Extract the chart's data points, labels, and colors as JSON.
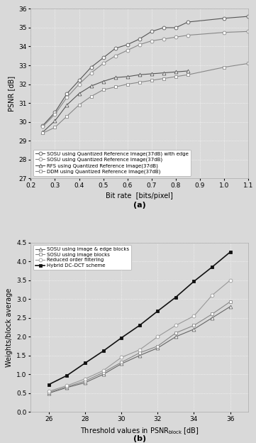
{
  "fig_width": 3.61,
  "fig_height": 6.24,
  "background_color": "#d9d9d9",
  "plot_a": {
    "xlabel": "Bit rate  [bits/pixel]",
    "ylabel": "PSNR [dB]",
    "xlim": [
      0.2,
      1.1
    ],
    "ylim": [
      27,
      36
    ],
    "xticks": [
      0.2,
      0.3,
      0.4,
      0.5,
      0.6,
      0.7,
      0.8,
      0.9,
      1.0,
      1.1
    ],
    "yticks": [
      27,
      28,
      29,
      30,
      31,
      32,
      33,
      34,
      35,
      36
    ],
    "label_a": "(a)",
    "series": [
      {
        "label": "SOSU using Quantized Reference Image(37dB) with edge",
        "x": [
          0.25,
          0.3,
          0.35,
          0.4,
          0.45,
          0.5,
          0.55,
          0.6,
          0.65,
          0.7,
          0.75,
          0.8,
          0.85,
          1.0,
          1.1
        ],
        "y": [
          29.8,
          30.5,
          31.5,
          32.2,
          32.9,
          33.4,
          33.9,
          34.1,
          34.4,
          34.8,
          35.0,
          35.0,
          35.3,
          35.5,
          35.6
        ],
        "marker": "o",
        "color": "#555555",
        "linestyle": "-",
        "linewidth": 0.8,
        "markersize": 3.5,
        "markerfacecolor": "white"
      },
      {
        "label": "SOSU using Quantized Reference Image(37dB)",
        "x": [
          0.25,
          0.3,
          0.35,
          0.4,
          0.45,
          0.5,
          0.55,
          0.6,
          0.65,
          0.7,
          0.75,
          0.8,
          0.85,
          1.0,
          1.1
        ],
        "y": [
          29.75,
          30.4,
          31.3,
          32.0,
          32.6,
          33.1,
          33.5,
          33.8,
          34.1,
          34.3,
          34.4,
          34.5,
          34.6,
          34.75,
          34.8
        ],
        "marker": "o",
        "color": "#888888",
        "linestyle": "-",
        "linewidth": 0.8,
        "markersize": 3.5,
        "markerfacecolor": "white"
      },
      {
        "label": "RFS using Quantized Reference Image(37dB)",
        "x": [
          0.25,
          0.3,
          0.35,
          0.4,
          0.45,
          0.5,
          0.55,
          0.6,
          0.65,
          0.7,
          0.75,
          0.8,
          0.85
        ],
        "y": [
          29.45,
          30.05,
          30.9,
          31.5,
          31.9,
          32.15,
          32.35,
          32.4,
          32.5,
          32.55,
          32.6,
          32.65,
          32.7
        ],
        "marker": "^",
        "color": "#555555",
        "linestyle": "-",
        "linewidth": 0.8,
        "markersize": 3.5,
        "markerfacecolor": "white"
      },
      {
        "label": "DDM using Quantized Reference Image(37dB)",
        "x": [
          0.25,
          0.3,
          0.35,
          0.4,
          0.45,
          0.5,
          0.55,
          0.6,
          0.65,
          0.7,
          0.75,
          0.8,
          0.85,
          1.0,
          1.1
        ],
        "y": [
          29.4,
          29.7,
          30.3,
          30.9,
          31.35,
          31.7,
          31.85,
          32.0,
          32.1,
          32.2,
          32.3,
          32.4,
          32.5,
          32.9,
          33.1
        ],
        "marker": "s",
        "color": "#888888",
        "linestyle": "-",
        "linewidth": 0.8,
        "markersize": 3.0,
        "markerfacecolor": "white"
      }
    ]
  },
  "plot_b": {
    "xlabel": "Threshold values in PSNR",
    "xlabel_sub": "block",
    "xlabel_unit": " [dB]",
    "ylabel": "Weights/block average",
    "xlim": [
      25,
      37
    ],
    "ylim": [
      0,
      4.5
    ],
    "xticks": [
      26,
      28,
      30,
      32,
      34,
      36
    ],
    "yticks": [
      0,
      0.5,
      1.0,
      1.5,
      2.0,
      2.5,
      3.0,
      3.5,
      4.0,
      4.5
    ],
    "label_b": "(b)",
    "series": [
      {
        "label": "SOSU using image & edge blocks",
        "x": [
          26,
          27,
          28,
          29,
          30,
          31,
          32,
          33,
          34,
          35,
          36
        ],
        "y": [
          0.5,
          0.65,
          0.78,
          1.0,
          1.28,
          1.5,
          1.7,
          2.0,
          2.2,
          2.5,
          2.8
        ],
        "marker": "^",
        "color": "#666666",
        "linestyle": "-",
        "linewidth": 0.8,
        "markersize": 3.5,
        "markerfacecolor": "white"
      },
      {
        "label": "SOSU using image blocks",
        "x": [
          26,
          27,
          28,
          29,
          30,
          31,
          32,
          33,
          34,
          35,
          36
        ],
        "y": [
          0.52,
          0.67,
          0.82,
          1.05,
          1.32,
          1.57,
          1.75,
          2.1,
          2.3,
          2.6,
          2.93
        ],
        "marker": "s",
        "color": "#888888",
        "linestyle": "-",
        "linewidth": 0.8,
        "markersize": 3.0,
        "markerfacecolor": "white"
      },
      {
        "label": "Reduced order filtering",
        "x": [
          26,
          27,
          28,
          29,
          30,
          31,
          32,
          33,
          34,
          35,
          36
        ],
        "y": [
          0.55,
          0.7,
          0.88,
          1.1,
          1.45,
          1.65,
          2.0,
          2.3,
          2.55,
          3.1,
          3.5
        ],
        "marker": "o",
        "color": "#999999",
        "linestyle": "-",
        "linewidth": 0.8,
        "markersize": 3.5,
        "markerfacecolor": "white"
      },
      {
        "label": "Hybrid DC–DCT scheme",
        "x": [
          26,
          27,
          28,
          29,
          30,
          31,
          32,
          33,
          34,
          35,
          36
        ],
        "y": [
          0.73,
          0.97,
          1.3,
          1.62,
          1.97,
          2.3,
          2.68,
          3.05,
          3.47,
          3.85,
          4.25
        ],
        "marker": "s",
        "color": "#111111",
        "linestyle": "-",
        "linewidth": 1.2,
        "markersize": 3.5,
        "markerfacecolor": "#111111"
      }
    ]
  }
}
